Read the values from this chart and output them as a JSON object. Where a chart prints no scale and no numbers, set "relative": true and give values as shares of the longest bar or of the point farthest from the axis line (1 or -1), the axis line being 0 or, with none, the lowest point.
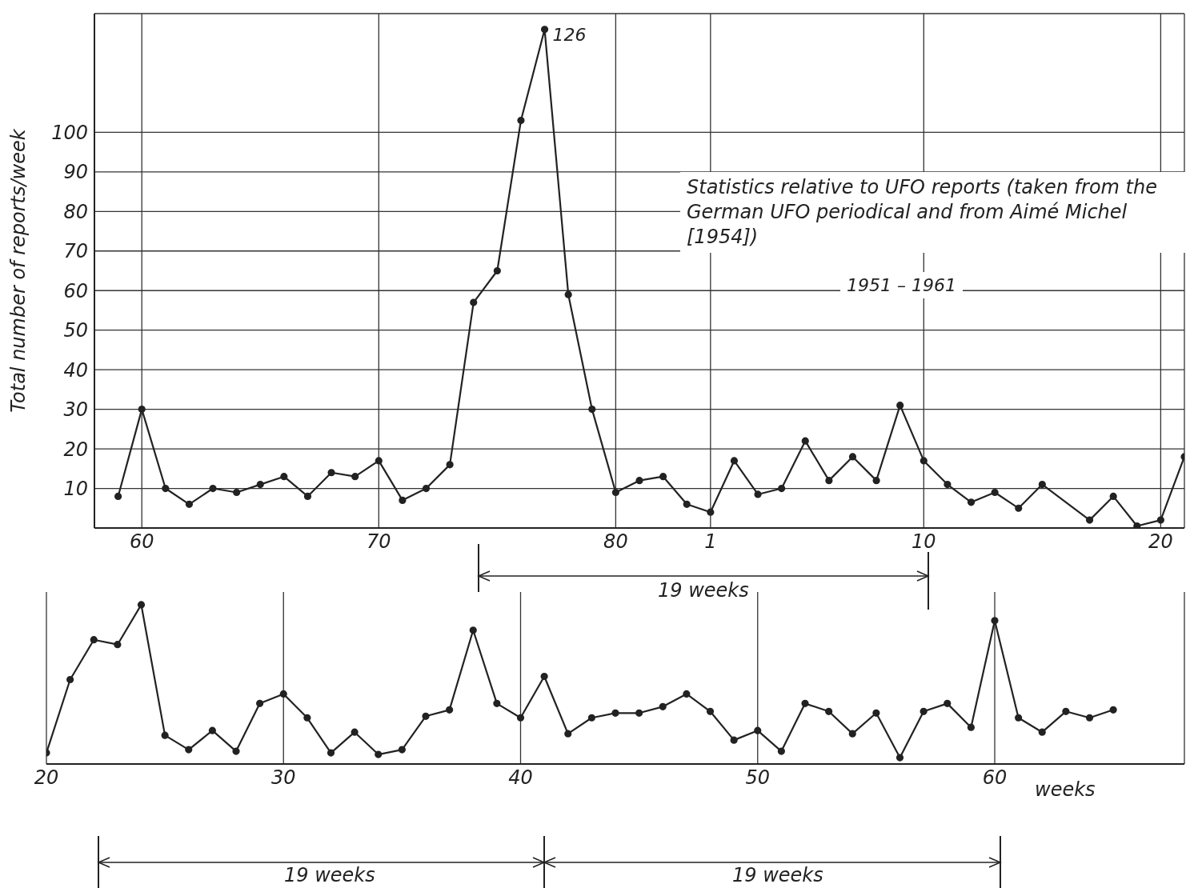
{
  "chart_data": [
    {
      "type": "line",
      "ylabel": "Total number of reports/week",
      "ylim": [
        0,
        130
      ],
      "categories": [
        null,
        "60",
        null,
        null,
        null,
        null,
        null,
        null,
        null,
        null,
        null,
        "70",
        null,
        null,
        null,
        null,
        null,
        null,
        null,
        null,
        null,
        "80",
        null,
        null,
        null,
        "1",
        null,
        null,
        null,
        null,
        null,
        null,
        null,
        null,
        "10",
        null,
        null,
        null,
        null,
        null,
        null,
        null,
        null,
        null,
        "20",
        null
      ],
      "yticks": [
        10,
        20,
        30,
        40,
        50,
        60,
        70,
        80,
        90,
        100
      ],
      "grid": true,
      "marker": "circle",
      "line_style": "solid",
      "series": [
        {
          "color": "#222222",
          "values": [
            8,
            30,
            10,
            6,
            10,
            9,
            11,
            13,
            8,
            14,
            13,
            17,
            7,
            10,
            16,
            57,
            65,
            103,
            126,
            59,
            30,
            9,
            12,
            13,
            6,
            4,
            17,
            8.5,
            10,
            22,
            12,
            18,
            12,
            31,
            17,
            11,
            6.5,
            9,
            5,
            11,
            null,
            2,
            8,
            0.5,
            2,
            18
          ]
        }
      ],
      "annotations": [
        "Statistics relative to UFO reports (taken from the German UFO periodical and from Aimé Michel [1954])",
        "1951 – 1961",
        "126",
        "19 weeks"
      ]
    },
    {
      "type": "line",
      "relative": true,
      "xlabel": "weeks",
      "xlim": [
        20,
        68
      ],
      "xticks": [
        20,
        30,
        40,
        50,
        60
      ],
      "grid": "x",
      "tick_labels": "x",
      "marker": "circle",
      "line_style": "solid",
      "series": [
        {
          "color": "#222222",
          "x": [
            20,
            21,
            22,
            23,
            24,
            25,
            26,
            27,
            28,
            29,
            30,
            31,
            32,
            33,
            34,
            35,
            36,
            37,
            38,
            39,
            40,
            41,
            42,
            43,
            44,
            45,
            46,
            47,
            48,
            49,
            50,
            51,
            52,
            53,
            54,
            55,
            56,
            57,
            58,
            59,
            60,
            61,
            62,
            63,
            64,
            65
          ],
          "values": [
            0.07,
            0.53,
            0.78,
            0.75,
            1,
            0.18,
            0.09,
            0.21,
            0.08,
            0.38,
            0.44,
            0.29,
            0.07,
            0.2,
            0.06,
            0.09,
            0.3,
            0.34,
            0.84,
            0.38,
            0.29,
            0.55,
            0.19,
            0.29,
            0.32,
            0.32,
            0.36,
            0.44,
            0.33,
            0.15,
            0.21,
            0.08,
            0.38,
            0.33,
            0.19,
            0.32,
            0.04,
            0.33,
            0.38,
            0.23,
            0.9,
            0.29,
            0.2,
            0.33,
            0.29,
            0.34
          ]
        }
      ],
      "annotations": [
        "19 weeks",
        "19 weeks"
      ]
    }
  ]
}
